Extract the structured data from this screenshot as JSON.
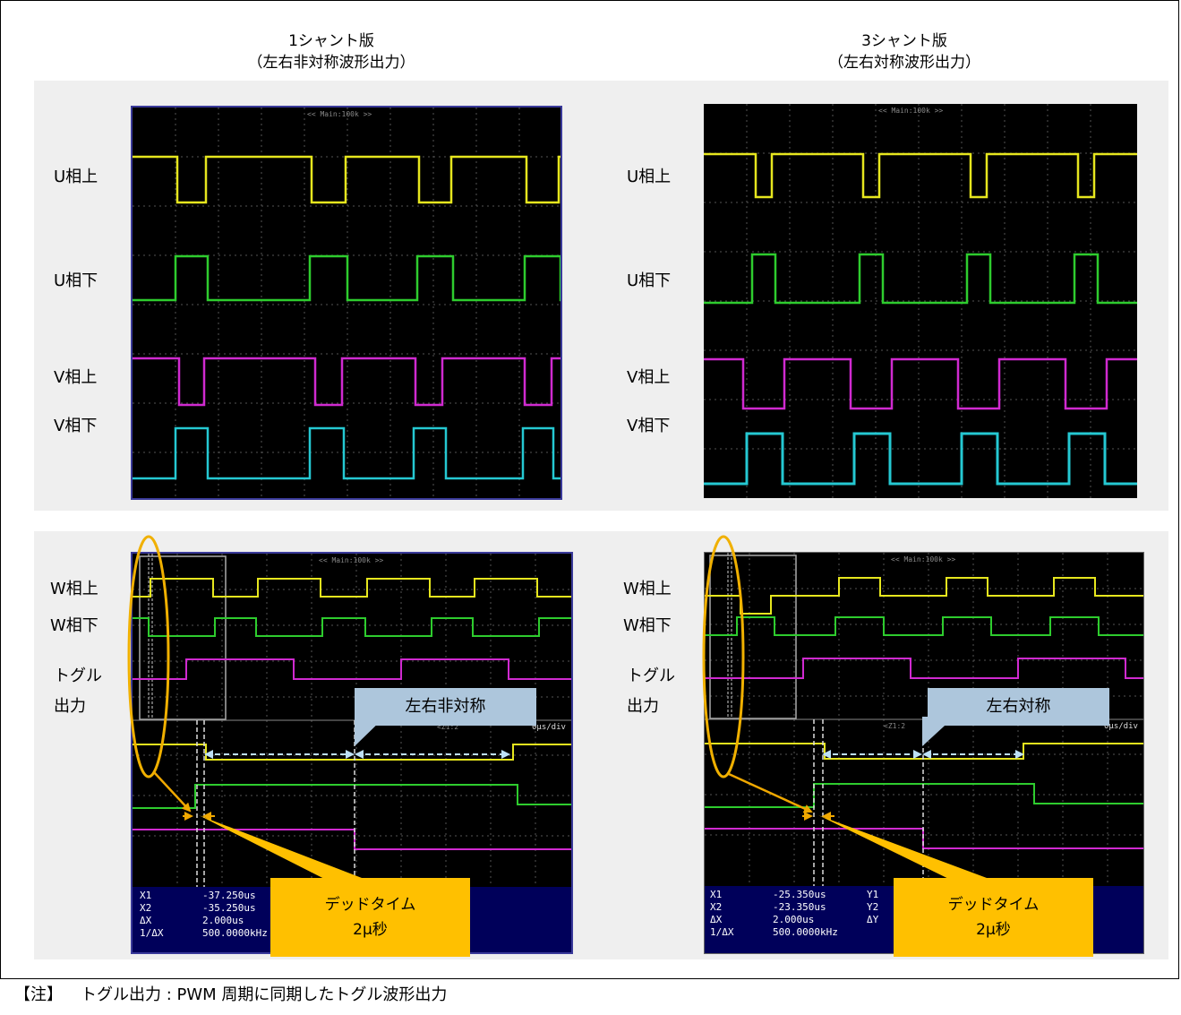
{
  "columns": {
    "left": {
      "title_line1": "1シャント版",
      "title_line2": "（左右非対称波形出力）"
    },
    "right": {
      "title_line1": "3シャント版",
      "title_line2": "（左右対称波形出力）"
    }
  },
  "channel_labels": {
    "u_upper": "U相上",
    "u_lower": "U相下",
    "v_upper": "V相上",
    "v_lower": "V相下",
    "w_upper": "W相上",
    "w_lower": "W相下",
    "toggle_line1": "トグル",
    "toggle_line2": "出力"
  },
  "scope": {
    "header": "<< Main:100k >>",
    "zoom_header": "<Z1:2",
    "timebase_fragment": "0µs/div"
  },
  "left_readout": {
    "x1_label": "X1",
    "x1_value": "-37.250us",
    "x2_label": "X2",
    "x2_value": "-35.250us",
    "dx_label": "ΔX",
    "dx_value": "2.000us",
    "inv_label": "1/ΔX",
    "inv_value": "500.0000kHz"
  },
  "right_readout": {
    "x1_label": "X1",
    "x1_value": "-25.350us",
    "x2_label": "X2",
    "x2_value": "-23.350us",
    "dx_label": "ΔX",
    "dx_value": "2.000us",
    "inv_label": "1/ΔX",
    "inv_value": "500.0000kHz",
    "y1_label": "Y1",
    "y2_label": "Y2",
    "dy_label": "ΔY"
  },
  "callouts": {
    "asymmetric": "左右非対称",
    "symmetric": "左右対称",
    "deadtime_line1": "デッドタイム",
    "deadtime_line2": "2μ秒"
  },
  "note": {
    "prefix": "【注】",
    "text": "トグル出力 : PWM 周期に同期したトグル波形出力"
  },
  "colors": {
    "yellow": "#e6e61e",
    "green": "#2ecc2e",
    "magenta": "#d02ad0",
    "cyan": "#25c8d2",
    "callout_fill": "#adc6dc",
    "deadtime_fill": "#ffc000",
    "arrow": "#f0a800",
    "readout_bg": "#00005a"
  }
}
